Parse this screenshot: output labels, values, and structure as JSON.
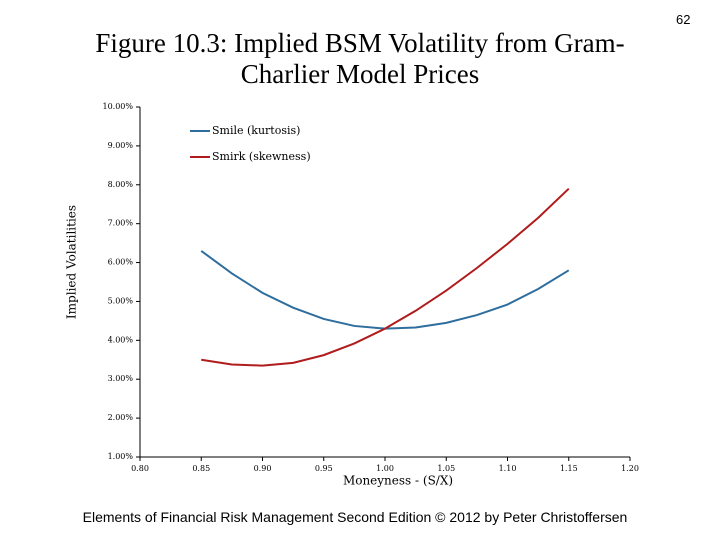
{
  "page_number": "62",
  "footer": "Elements of Financial Risk Management Second Edition © 2012  by Peter Christoffersen",
  "chart_data": {
    "type": "line",
    "title": "Figure 10.3: Implied BSM Volatility from Gram-Charlier Model Prices",
    "x_label": "Moneyness - (S/X)",
    "y_label": "Implied Volatilities",
    "x": [
      0.85,
      0.875,
      0.9,
      0.925,
      0.95,
      0.975,
      1.0,
      1.025,
      1.05,
      1.075,
      1.1,
      1.125,
      1.15
    ],
    "series": [
      {
        "name": "Smile (kurtosis)",
        "color": "#2e6e9e",
        "values": [
          6.3,
          5.72,
          5.22,
          4.84,
          4.55,
          4.37,
          4.3,
          4.33,
          4.45,
          4.65,
          4.92,
          5.32,
          5.8
        ]
      },
      {
        "name": "Smirk (skewness)",
        "color": "#b01c1c",
        "values": [
          3.5,
          3.38,
          3.35,
          3.42,
          3.62,
          3.92,
          4.3,
          4.76,
          5.28,
          5.86,
          6.48,
          7.15,
          7.9
        ]
      }
    ],
    "xlim": [
      0.8,
      1.2
    ],
    "xticks": [
      {
        "value": 0.8,
        "label": "0.80"
      },
      {
        "value": 0.85,
        "label": "0.85"
      },
      {
        "value": 0.9,
        "label": "0.90"
      },
      {
        "value": 0.95,
        "label": "0.95"
      },
      {
        "value": 1,
        "label": "1.00"
      },
      {
        "value": 1.05,
        "label": "1.05"
      },
      {
        "value": 1.1,
        "label": "1.10"
      },
      {
        "value": 1.15,
        "label": "1.15"
      },
      {
        "value": 1.2,
        "label": "1.20"
      }
    ],
    "ylim": [
      1,
      10
    ],
    "yticks": [
      {
        "value": 1,
        "label": "1.00%"
      },
      {
        "value": 2,
        "label": "2.00%"
      },
      {
        "value": 3,
        "label": "3.00%"
      },
      {
        "value": 4,
        "label": "4.00%"
      },
      {
        "value": 5,
        "label": "5.00%"
      },
      {
        "value": 6,
        "label": "6.00%"
      },
      {
        "value": 7,
        "label": "7.00%"
      },
      {
        "value": 8,
        "label": "8.00%"
      },
      {
        "value": 9,
        "label": "9.00%"
      },
      {
        "value": 10,
        "label": "10.00%"
      }
    ],
    "grid": false,
    "legend": "upper-left"
  }
}
